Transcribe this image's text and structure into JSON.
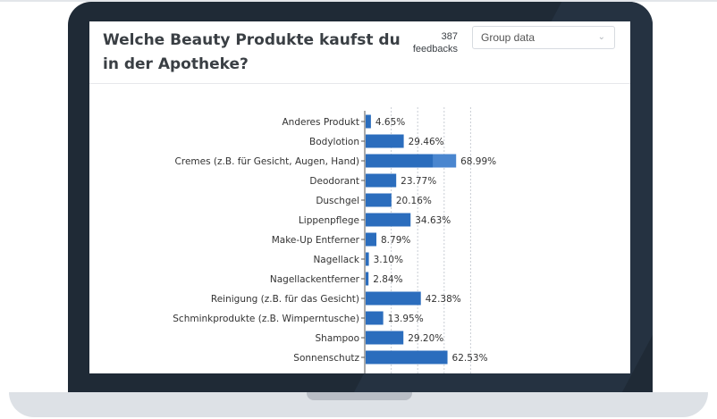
{
  "survey": {
    "question": "Welche Beauty Produkte kaufst du in der Apotheke?",
    "feedback_count": "387",
    "feedback_label": "feedbacks",
    "group_select_value": "Group data"
  },
  "colors": {
    "bar": "#2b6dbd",
    "bar_highlight": "#4a86cf",
    "frame": "#1f2a36",
    "base": "#dde1e6"
  },
  "icons": {
    "dropdown": "chevron-down-icon"
  },
  "chart_data": {
    "type": "bar",
    "orientation": "horizontal",
    "categories": [
      "Anderes Produkt",
      "Bodylotion",
      "Cremes (z.B. für Gesicht, Augen, Hand)",
      "Deodorant",
      "Duschgel",
      "Lippenpflege",
      "Make-Up Entferner",
      "Nagellack",
      "Nagellackentferner",
      "Reinigung (z.B. für das Gesicht)",
      "Schminkprodukte (z.B. Wimperntusche)",
      "Shampoo",
      "Sonnenschutz"
    ],
    "values": [
      4.65,
      29.46,
      68.99,
      23.77,
      20.16,
      34.63,
      8.79,
      3.1,
      2.84,
      42.38,
      13.95,
      29.2,
      62.53
    ],
    "value_labels": [
      "4.65%",
      "29.46%",
      "68.99%",
      "23.77%",
      "20.16%",
      "34.63%",
      "8.79%",
      "3.10%",
      "2.84%",
      "42.38%",
      "13.95%",
      "29.20%",
      "62.53%"
    ],
    "highlighted_index": 2,
    "xlim": [
      0,
      100
    ],
    "gridlines": [
      20,
      40,
      60,
      80
    ],
    "grid": true,
    "legend": "none"
  }
}
